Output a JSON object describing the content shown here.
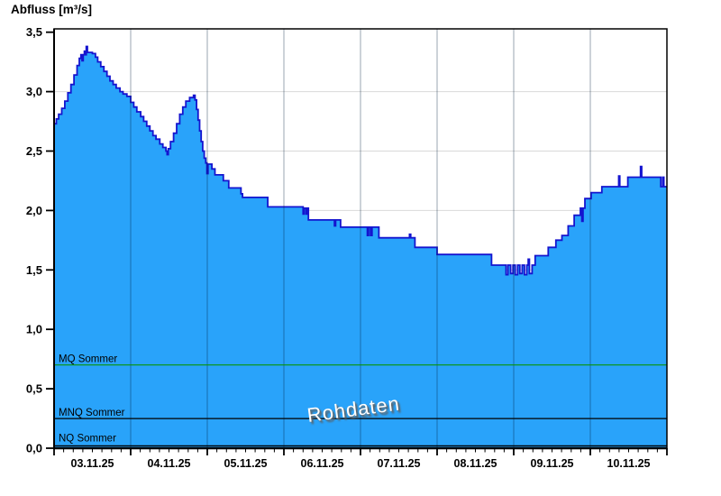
{
  "title": "Abfluss [m³/s]",
  "watermark": "Rohdaten",
  "chart_data": {
    "type": "area",
    "title": "Abfluss [m³/s]",
    "ylabel": "Abfluss [m³/s]",
    "series_name": "Abfluss Rohdaten",
    "ylim": [
      0,
      3.5
    ],
    "ytick_step": 0.5,
    "ytick_labels": [
      "0,0",
      "0,5",
      "1,0",
      "1,5",
      "2,0",
      "2,5",
      "3,0",
      "3,5"
    ],
    "categories": [
      "03.11.25",
      "04.11.25",
      "05.11.25",
      "06.11.25",
      "07.11.25",
      "08.11.25",
      "09.11.25",
      "10.11.25"
    ],
    "x_range_days": [
      0,
      8
    ],
    "x_minor_tick_hours": 3,
    "grid": "horizontal-major and vertical-day-separators",
    "legend_position": "none",
    "unit": "m³/s",
    "steps_format": "[days_since_03_11_00h, discharge_m3s] step-after",
    "steps": [
      [
        0.0,
        2.73
      ],
      [
        0.03,
        2.77
      ],
      [
        0.06,
        2.81
      ],
      [
        0.1,
        2.86
      ],
      [
        0.14,
        2.92
      ],
      [
        0.18,
        2.99
      ],
      [
        0.22,
        3.06
      ],
      [
        0.26,
        3.14
      ],
      [
        0.3,
        3.22
      ],
      [
        0.33,
        3.28
      ],
      [
        0.35,
        3.31
      ],
      [
        0.365,
        3.26
      ],
      [
        0.38,
        3.31
      ],
      [
        0.395,
        3.34
      ],
      [
        0.41,
        3.31
      ],
      [
        0.42,
        3.38
      ],
      [
        0.435,
        3.33
      ],
      [
        0.5,
        3.32
      ],
      [
        0.54,
        3.29
      ],
      [
        0.57,
        3.25
      ],
      [
        0.61,
        3.21
      ],
      [
        0.65,
        3.17
      ],
      [
        0.69,
        3.13
      ],
      [
        0.73,
        3.09
      ],
      [
        0.77,
        3.06
      ],
      [
        0.81,
        3.03
      ],
      [
        0.86,
        3.0
      ],
      [
        0.9,
        2.98
      ],
      [
        0.95,
        2.96
      ],
      [
        1.0,
        2.91
      ],
      [
        1.04,
        2.87
      ],
      [
        1.08,
        2.83
      ],
      [
        1.13,
        2.79
      ],
      [
        1.17,
        2.75
      ],
      [
        1.21,
        2.71
      ],
      [
        1.25,
        2.67
      ],
      [
        1.29,
        2.63
      ],
      [
        1.33,
        2.6
      ],
      [
        1.38,
        2.56
      ],
      [
        1.42,
        2.53
      ],
      [
        1.46,
        2.5
      ],
      [
        1.475,
        2.47
      ],
      [
        1.49,
        2.52
      ],
      [
        1.52,
        2.58
      ],
      [
        1.56,
        2.65
      ],
      [
        1.6,
        2.73
      ],
      [
        1.64,
        2.81
      ],
      [
        1.68,
        2.87
      ],
      [
        1.72,
        2.92
      ],
      [
        1.77,
        2.95
      ],
      [
        1.82,
        2.97
      ],
      [
        1.84,
        2.93
      ],
      [
        1.86,
        2.85
      ],
      [
        1.88,
        2.76
      ],
      [
        1.9,
        2.67
      ],
      [
        1.92,
        2.58
      ],
      [
        1.94,
        2.5
      ],
      [
        1.96,
        2.44
      ],
      [
        1.98,
        2.4
      ],
      [
        1.995,
        2.31
      ],
      [
        2.01,
        2.39
      ],
      [
        2.06,
        2.35
      ],
      [
        2.1,
        2.3
      ],
      [
        2.21,
        2.25
      ],
      [
        2.28,
        2.19
      ],
      [
        2.44,
        2.14
      ],
      [
        2.46,
        2.11
      ],
      [
        2.79,
        2.03
      ],
      [
        3.25,
        1.97
      ],
      [
        3.265,
        2.02
      ],
      [
        3.29,
        1.97
      ],
      [
        3.31,
        2.02
      ],
      [
        3.32,
        1.92
      ],
      [
        3.66,
        1.87
      ],
      [
        3.675,
        1.92
      ],
      [
        3.74,
        1.86
      ],
      [
        4.09,
        1.79
      ],
      [
        4.105,
        1.86
      ],
      [
        4.13,
        1.79
      ],
      [
        4.15,
        1.86
      ],
      [
        4.24,
        1.77
      ],
      [
        4.64,
        1.8
      ],
      [
        4.655,
        1.77
      ],
      [
        4.71,
        1.69
      ],
      [
        5.0,
        1.63
      ],
      [
        5.71,
        1.54
      ],
      [
        5.9,
        1.46
      ],
      [
        5.925,
        1.54
      ],
      [
        5.96,
        1.47
      ],
      [
        5.99,
        1.54
      ],
      [
        6.02,
        1.46
      ],
      [
        6.05,
        1.54
      ],
      [
        6.08,
        1.47
      ],
      [
        6.11,
        1.54
      ],
      [
        6.14,
        1.46
      ],
      [
        6.17,
        1.54
      ],
      [
        6.19,
        1.59
      ],
      [
        6.205,
        1.47
      ],
      [
        6.24,
        1.54
      ],
      [
        6.28,
        1.62
      ],
      [
        6.45,
        1.69
      ],
      [
        6.55,
        1.75
      ],
      [
        6.63,
        1.79
      ],
      [
        6.71,
        1.87
      ],
      [
        6.79,
        1.96
      ],
      [
        6.87,
        2.02
      ],
      [
        6.89,
        1.91
      ],
      [
        6.905,
        2.02
      ],
      [
        6.93,
        2.1
      ],
      [
        7.01,
        2.15
      ],
      [
        7.15,
        2.2
      ],
      [
        7.37,
        2.29
      ],
      [
        7.385,
        2.2
      ],
      [
        7.49,
        2.28
      ],
      [
        7.655,
        2.37
      ],
      [
        7.67,
        2.28
      ],
      [
        7.92,
        2.2
      ],
      [
        7.945,
        2.28
      ],
      [
        7.96,
        2.2
      ],
      [
        8.0,
        2.2
      ]
    ],
    "reference_lines": [
      {
        "label": "MQ Sommer",
        "value": 0.7,
        "color": "#0a9408"
      },
      {
        "label": "MNQ Sommer",
        "value": 0.25,
        "color": "#000000"
      },
      {
        "label": "NQ Sommer",
        "value": 0.02,
        "color": "#000000"
      }
    ],
    "colors": {
      "area_fill": "#29A3FA",
      "area_line": "#1414CF",
      "h_grid": "#D9D9D9",
      "v_grid": "rgba(0,30,60,0.40)",
      "frame": "#000000",
      "text": "#000000",
      "watermark_text": "#FFFFFF"
    }
  }
}
